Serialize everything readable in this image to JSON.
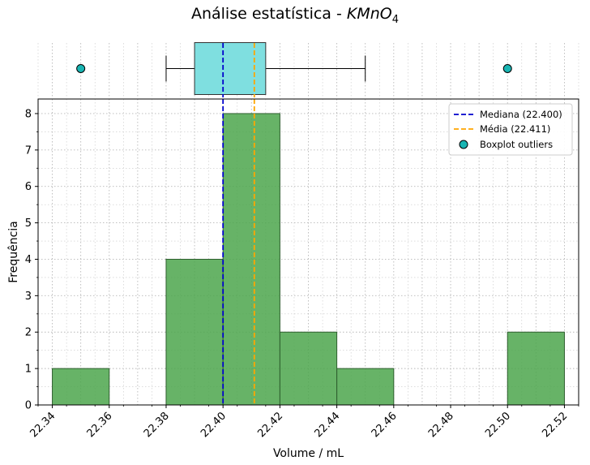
{
  "title": {
    "prefix": "Análise estatística - ",
    "formula_main": "KMnO",
    "formula_sub": "4"
  },
  "colors": {
    "bar_fill": "#4ca64c",
    "bar_edge": "#2f5f2f",
    "box_fill": "#7fdfe0",
    "outlier_fill": "#19b5b3",
    "median_line": "#0000cc",
    "mean_line": "#ffa500",
    "grid": "#b0b0b0"
  },
  "chart_data": [
    {
      "type": "boxplot",
      "orientation": "horizontal",
      "q1": 22.39,
      "median": 22.4,
      "q3": 22.415,
      "whisker_low": 22.38,
      "whisker_high": 22.45,
      "outliers": [
        22.35,
        22.5
      ],
      "mean": 22.411,
      "xlim": [
        22.335,
        22.525
      ],
      "grid": true
    },
    {
      "type": "bar",
      "subtype": "histogram",
      "bin_edges": [
        22.34,
        22.36,
        22.38,
        22.4,
        22.42,
        22.44,
        22.46,
        22.48,
        22.5,
        22.52
      ],
      "values": [
        1,
        0,
        4,
        8,
        2,
        1,
        0,
        0,
        2
      ],
      "xlim": [
        22.335,
        22.525
      ],
      "ylim": [
        0,
        8.4
      ],
      "xticks": [
        "22.34",
        "22.36",
        "22.38",
        "22.40",
        "22.42",
        "22.44",
        "22.46",
        "22.48",
        "22.50",
        "22.52"
      ],
      "yticks": [
        "0",
        "1",
        "2",
        "3",
        "4",
        "5",
        "6",
        "7",
        "8"
      ],
      "xlabel": "Volume / mL",
      "ylabel": "Frequência",
      "grid": true,
      "median": 22.4,
      "mean": 22.411,
      "legend": {
        "placement": "top-right",
        "entries": [
          "Mediana (22.400)",
          "Média (22.411)",
          "Boxplot outliers"
        ]
      }
    }
  ]
}
